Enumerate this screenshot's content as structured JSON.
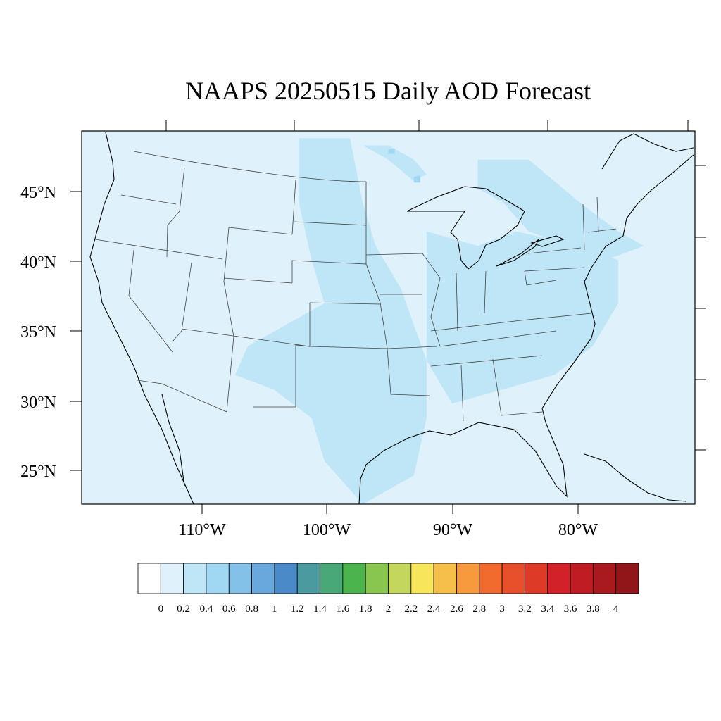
{
  "figure": {
    "title": "NAAPS 20250515 Daily AOD Forecast",
    "background_aod_color": "#dff1fb"
  },
  "axes": {
    "lat_labels": [
      "45°N",
      "40°N",
      "35°N",
      "30°N",
      "25°N"
    ],
    "lon_labels": [
      "110°W",
      "100°W",
      "90°W",
      "80°W"
    ]
  },
  "colorbar": {
    "levels": [
      "0",
      "0.2",
      "0.4",
      "0.6",
      "0.8",
      "1",
      "1.2",
      "1.4",
      "1.6",
      "1.8",
      "2",
      "2.2",
      "2.4",
      "2.6",
      "2.8",
      "3",
      "3.2",
      "3.4",
      "3.6",
      "3.8",
      "4"
    ],
    "colors": [
      "#ffffff",
      "#dff1fb",
      "#bfe6f7",
      "#a0d8f3",
      "#84c1e8",
      "#69a8dc",
      "#4a8ac8",
      "#4a9aa0",
      "#48a878",
      "#4cb44c",
      "#88c650",
      "#c4d65c",
      "#f7e55b",
      "#f6bf4a",
      "#f79a3e",
      "#f26b2e",
      "#e8502c",
      "#de3a28",
      "#d22128",
      "#bf1c24",
      "#a91a1f",
      "#901619"
    ]
  },
  "chart_data": {
    "type": "heatmap",
    "title": "NAAPS 20250515 Daily AOD Forecast",
    "variable": "AOD",
    "lon_range": [
      -119,
      -71
    ],
    "lat_range": [
      23,
      49
    ],
    "background_aod": 0.1,
    "high_regions": [
      {
        "aod": 0.3,
        "polygon": [
          [
            -102,
            48.5
          ],
          [
            -98,
            48.5
          ],
          [
            -97,
            44
          ],
          [
            -96,
            41
          ],
          [
            -94,
            38
          ],
          [
            -92,
            33
          ],
          [
            -92,
            29
          ],
          [
            -93,
            25
          ],
          [
            -97,
            23
          ],
          [
            -100,
            26
          ],
          [
            -101,
            29
          ],
          [
            -104,
            31
          ],
          [
            -107,
            32
          ],
          [
            -106,
            34
          ],
          [
            -102,
            36
          ],
          [
            -100,
            37
          ],
          [
            -101,
            40
          ],
          [
            -102,
            44
          ]
        ]
      },
      {
        "aod": 0.3,
        "polygon": [
          [
            -92,
            42
          ],
          [
            -88,
            41
          ],
          [
            -85,
            42
          ],
          [
            -80,
            41
          ],
          [
            -77,
            40
          ],
          [
            -77,
            37
          ],
          [
            -79,
            34
          ],
          [
            -82,
            32
          ],
          [
            -86,
            31
          ],
          [
            -90,
            30
          ],
          [
            -92,
            33
          ],
          [
            -92,
            38
          ]
        ]
      },
      {
        "aod": 0.3,
        "polygon": [
          [
            -88,
            47
          ],
          [
            -84,
            47
          ],
          [
            -80,
            44
          ],
          [
            -77,
            42
          ],
          [
            -75,
            41
          ],
          [
            -78,
            40
          ],
          [
            -81,
            41
          ],
          [
            -84,
            42
          ],
          [
            -86,
            44
          ],
          [
            -88,
            45
          ]
        ]
      },
      {
        "aod": 0.3,
        "polygon": [
          [
            -97,
            48
          ],
          [
            -95,
            47
          ],
          [
            -93,
            45.5
          ],
          [
            -92,
            46
          ],
          [
            -93,
            47
          ],
          [
            -95,
            48
          ]
        ]
      },
      {
        "aod": 0.5,
        "polygon": [
          [
            -95,
            47.7
          ],
          [
            -94.5,
            47.8
          ],
          [
            -94.5,
            47.4
          ],
          [
            -95,
            47.4
          ]
        ]
      },
      {
        "aod": 0.5,
        "polygon": [
          [
            -93,
            45.8
          ],
          [
            -92.5,
            45.9
          ],
          [
            -92.5,
            45.4
          ],
          [
            -93,
            45.4
          ]
        ]
      }
    ]
  }
}
